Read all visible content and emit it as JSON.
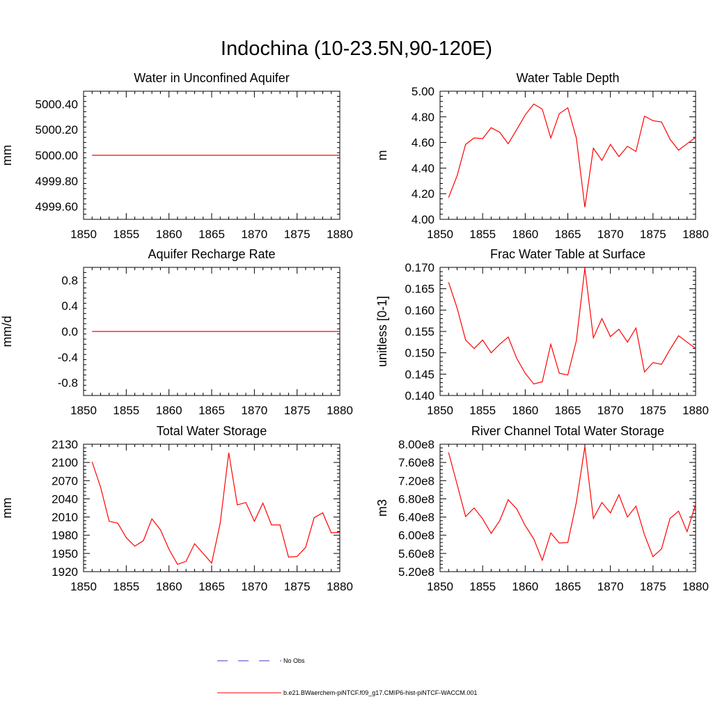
{
  "figure": {
    "title": "Indochina (10-23.5N,90-120E)"
  },
  "colors": {
    "model_line": "#ff0000",
    "obs_line": "#3b3bcf",
    "axis": "#000000",
    "background": "#ffffff"
  },
  "legend": {
    "obs_label": "No Obs",
    "model_label": "b.e21.BWaerchem-piNTCF.f09_g17.CMIP6-hist-piNTCF-WACCM.001"
  },
  "chart_data": [
    {
      "type": "line",
      "title": "Water in Unconfined Aquifer",
      "xlabel": "",
      "ylabel": "mm",
      "xlim": [
        1850,
        1880
      ],
      "ylim": [
        4999.5,
        5000.5
      ],
      "xticks": [
        1850,
        1855,
        1860,
        1865,
        1870,
        1875,
        1880
      ],
      "yticks": [
        4999.6,
        4999.8,
        5000.0,
        5000.2,
        5000.4
      ],
      "ytick_labels": [
        "4999.60",
        "4999.80",
        "5000.00",
        "5000.20",
        "5000.40"
      ],
      "grid": false,
      "series": [
        {
          "x": [
            1851,
            1852,
            1853,
            1854,
            1855,
            1856,
            1857,
            1858,
            1859,
            1860,
            1861,
            1862,
            1863,
            1864,
            1865,
            1866,
            1867,
            1868,
            1869,
            1870,
            1871,
            1872,
            1873,
            1874,
            1875,
            1876,
            1877,
            1878,
            1879,
            1880
          ],
          "y": [
            5000,
            5000,
            5000,
            5000,
            5000,
            5000,
            5000,
            5000,
            5000,
            5000,
            5000,
            5000,
            5000,
            5000,
            5000,
            5000,
            5000,
            5000,
            5000,
            5000,
            5000,
            5000,
            5000,
            5000,
            5000,
            5000,
            5000,
            5000,
            5000,
            5000
          ]
        }
      ]
    },
    {
      "type": "line",
      "title": "Water Table Depth",
      "xlabel": "",
      "ylabel": "m",
      "xlim": [
        1850,
        1880
      ],
      "ylim": [
        4.0,
        5.0
      ],
      "xticks": [
        1850,
        1855,
        1860,
        1865,
        1870,
        1875,
        1880
      ],
      "yticks": [
        4.0,
        4.2,
        4.4,
        4.6,
        4.8,
        5.0
      ],
      "ytick_labels": [
        "4.00",
        "4.20",
        "4.40",
        "4.60",
        "4.80",
        "5.00"
      ],
      "grid": false,
      "series": [
        {
          "x": [
            1851,
            1852,
            1853,
            1854,
            1855,
            1856,
            1857,
            1858,
            1859,
            1860,
            1861,
            1862,
            1863,
            1864,
            1865,
            1866,
            1867,
            1868,
            1869,
            1870,
            1871,
            1872,
            1873,
            1874,
            1875,
            1876,
            1877,
            1878,
            1879,
            1880
          ],
          "y": [
            4.17,
            4.34,
            4.585,
            4.635,
            4.63,
            4.715,
            4.68,
            4.59,
            4.7,
            4.815,
            4.9,
            4.86,
            4.635,
            4.825,
            4.87,
            4.635,
            4.095,
            4.555,
            4.46,
            4.585,
            4.49,
            4.57,
            4.53,
            4.805,
            4.77,
            4.76,
            4.625,
            4.54,
            4.59,
            4.64
          ]
        }
      ]
    },
    {
      "type": "line",
      "title": "Aquifer Recharge Rate",
      "xlabel": "",
      "ylabel": "mm/d",
      "xlim": [
        1850,
        1880
      ],
      "ylim": [
        -1.0,
        1.0
      ],
      "xticks": [
        1850,
        1855,
        1860,
        1865,
        1870,
        1875,
        1880
      ],
      "yticks": [
        -0.8,
        -0.4,
        0.0,
        0.4,
        0.8
      ],
      "ytick_labels": [
        "-0.8",
        "-0.4",
        "0.0",
        "0.4",
        "0.8"
      ],
      "grid": false,
      "series": [
        {
          "x": [
            1851,
            1852,
            1853,
            1854,
            1855,
            1856,
            1857,
            1858,
            1859,
            1860,
            1861,
            1862,
            1863,
            1864,
            1865,
            1866,
            1867,
            1868,
            1869,
            1870,
            1871,
            1872,
            1873,
            1874,
            1875,
            1876,
            1877,
            1878,
            1879,
            1880
          ],
          "y": [
            0,
            0,
            0,
            0,
            0,
            0,
            0,
            0,
            0,
            0,
            0,
            0,
            0,
            0,
            0,
            0,
            0,
            0,
            0,
            0,
            0,
            0,
            0,
            0,
            0,
            0,
            0,
            0,
            0,
            0
          ]
        }
      ]
    },
    {
      "type": "line",
      "title": "Frac Water Table at Surface",
      "xlabel": "",
      "ylabel": "unitless [0-1]",
      "xlim": [
        1850,
        1880
      ],
      "ylim": [
        0.14,
        0.17
      ],
      "xticks": [
        1850,
        1855,
        1860,
        1865,
        1870,
        1875,
        1880
      ],
      "yticks": [
        0.14,
        0.145,
        0.15,
        0.155,
        0.16,
        0.165,
        0.17
      ],
      "ytick_labels": [
        "0.140",
        "0.145",
        "0.150",
        "0.155",
        "0.160",
        "0.165",
        "0.170"
      ],
      "grid": false,
      "series": [
        {
          "x": [
            1851,
            1852,
            1853,
            1854,
            1855,
            1856,
            1857,
            1858,
            1859,
            1860,
            1861,
            1862,
            1863,
            1864,
            1865,
            1866,
            1867,
            1868,
            1869,
            1870,
            1871,
            1872,
            1873,
            1874,
            1875,
            1876,
            1877,
            1878,
            1879,
            1880
          ],
          "y": [
            0.1665,
            0.1605,
            0.153,
            0.151,
            0.153,
            0.15,
            0.152,
            0.1537,
            0.1487,
            0.1452,
            0.1427,
            0.1432,
            0.152,
            0.1452,
            0.1448,
            0.1528,
            0.1698,
            0.1535,
            0.158,
            0.1538,
            0.1555,
            0.1525,
            0.1558,
            0.1455,
            0.1477,
            0.1473,
            0.1508,
            0.154,
            0.1525,
            0.151
          ]
        }
      ]
    },
    {
      "type": "line",
      "title": "Total Water Storage",
      "xlabel": "",
      "ylabel": "mm",
      "xlim": [
        1850,
        1880
      ],
      "ylim": [
        1920,
        2130
      ],
      "xticks": [
        1850,
        1855,
        1860,
        1865,
        1870,
        1875,
        1880
      ],
      "yticks": [
        1920,
        1950,
        1980,
        2010,
        2040,
        2070,
        2100,
        2130
      ],
      "ytick_labels": [
        "1920",
        "1950",
        "1980",
        "2010",
        "2040",
        "2070",
        "2100",
        "2130"
      ],
      "grid": false,
      "series": [
        {
          "x": [
            1851,
            1852,
            1853,
            1854,
            1855,
            1856,
            1857,
            1858,
            1859,
            1860,
            1861,
            1862,
            1863,
            1864,
            1865,
            1866,
            1867,
            1868,
            1869,
            1870,
            1871,
            1872,
            1873,
            1874,
            1875,
            1876,
            1877,
            1878,
            1879,
            1880
          ],
          "y": [
            2101,
            2059,
            2003,
            2000,
            1976,
            1962,
            1971,
            2007,
            1989,
            1957,
            1932,
            1937,
            1966,
            1950,
            1934,
            2000,
            2116,
            2030,
            2034,
            2003,
            2033,
            1997,
            1997,
            1944,
            1945,
            1960,
            2009,
            2017,
            1984,
            1985
          ]
        }
      ]
    },
    {
      "type": "line",
      "title": "River Channel Total Water Storage",
      "xlabel": "",
      "ylabel": "m3",
      "xlim": [
        1850,
        1880
      ],
      "ylim": [
        520000000,
        800000000
      ],
      "xticks": [
        1850,
        1855,
        1860,
        1865,
        1870,
        1875,
        1880
      ],
      "yticks": [
        520000000,
        560000000,
        600000000,
        640000000,
        680000000,
        720000000,
        760000000,
        800000000
      ],
      "ytick_labels": [
        "5.20e8",
        "5.60e8",
        "6.00e8",
        "6.40e8",
        "6.80e8",
        "7.20e8",
        "7.60e8",
        "8.00e8"
      ],
      "grid": false,
      "series": [
        {
          "x": [
            1851,
            1852,
            1853,
            1854,
            1855,
            1856,
            1857,
            1858,
            1859,
            1860,
            1861,
            1862,
            1863,
            1864,
            1865,
            1866,
            1867,
            1868,
            1869,
            1870,
            1871,
            1872,
            1873,
            1874,
            1875,
            1876,
            1877,
            1878,
            1879,
            1880
          ],
          "y": [
            782000000,
            712000000,
            641000000,
            660000000,
            636000000,
            604000000,
            632000000,
            678000000,
            658000000,
            621000000,
            592000000,
            545000000,
            605000000,
            583000000,
            584000000,
            672000000,
            795000000,
            637000000,
            672000000,
            649000000,
            689000000,
            640000000,
            664000000,
            601000000,
            553000000,
            570000000,
            637000000,
            653000000,
            608000000,
            668000000
          ]
        }
      ]
    }
  ]
}
